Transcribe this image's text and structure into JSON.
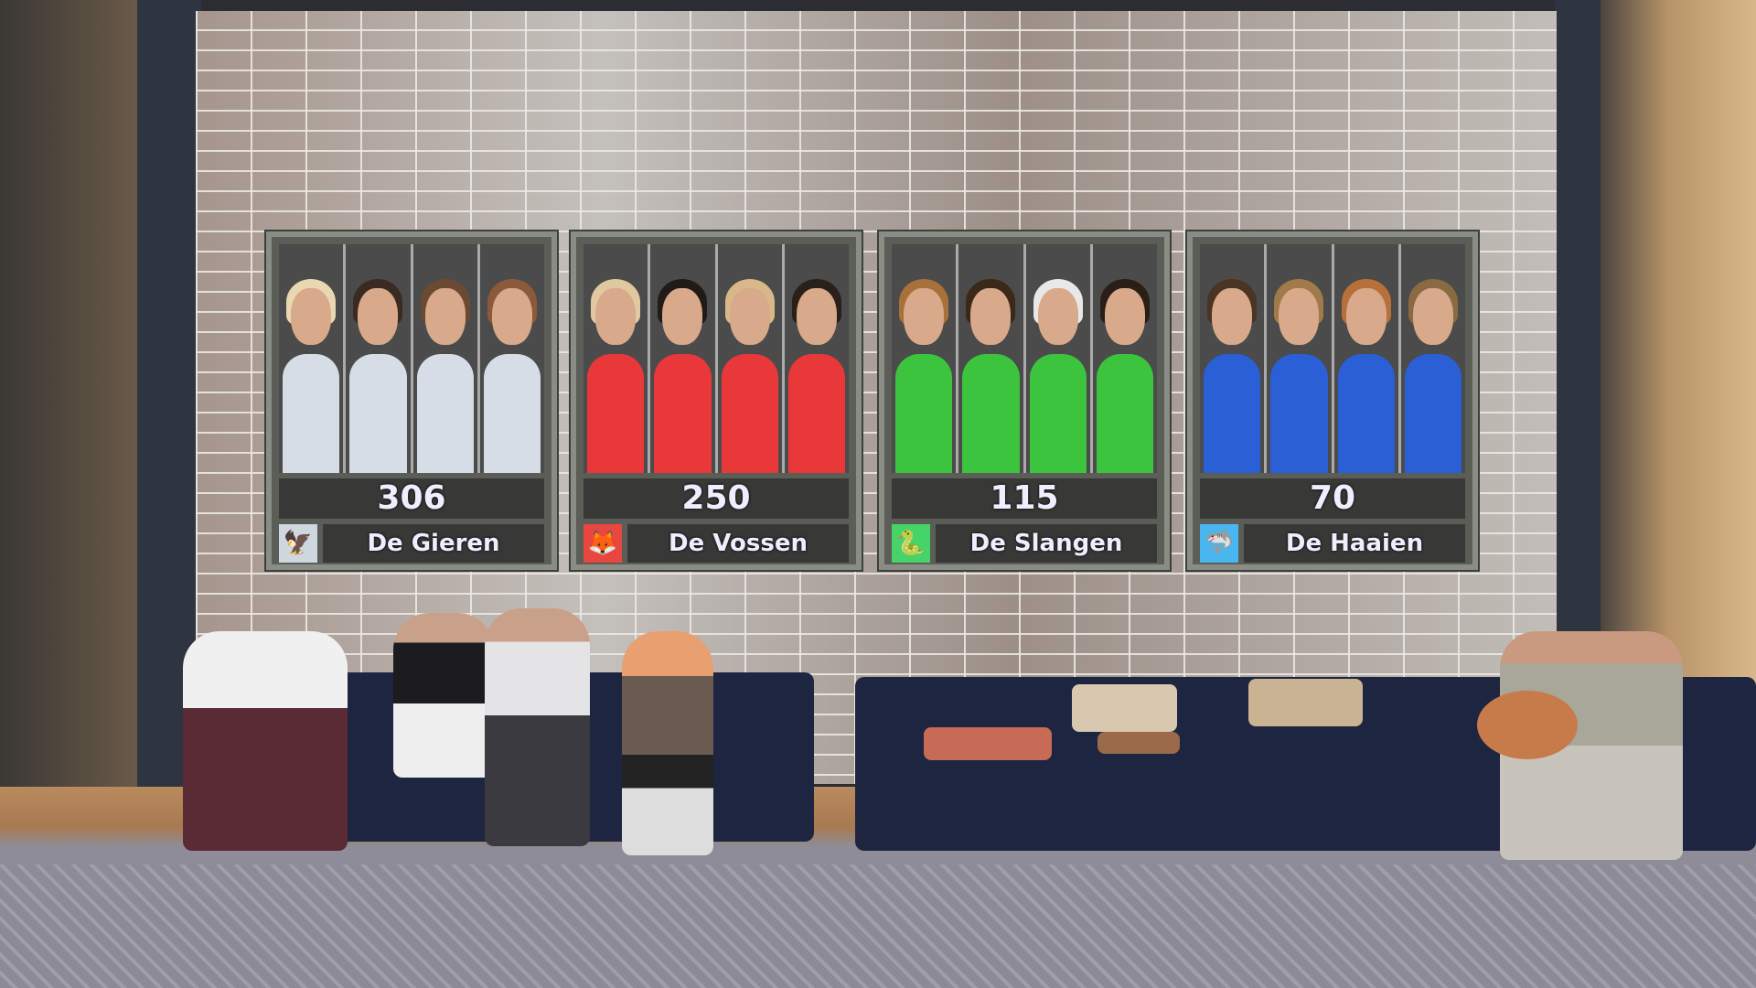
{
  "scoreboard": {
    "teams": [
      {
        "name": "De Gieren",
        "score": "306",
        "color": "#d6dde6",
        "badge_color": "#cfd8e0",
        "icon": "vulture-icon"
      },
      {
        "name": "De Vossen",
        "score": "250",
        "color": "#e8383a",
        "badge_color": "#e8463f",
        "icon": "fox-icon"
      },
      {
        "name": "De Slangen",
        "score": "115",
        "color": "#3cc43e",
        "badge_color": "#46d36a",
        "icon": "snake-icon"
      },
      {
        "name": "De Haaien",
        "score": "70",
        "color": "#2b5fd6",
        "badge_color": "#4ab6f0",
        "icon": "shark-icon"
      }
    ]
  }
}
